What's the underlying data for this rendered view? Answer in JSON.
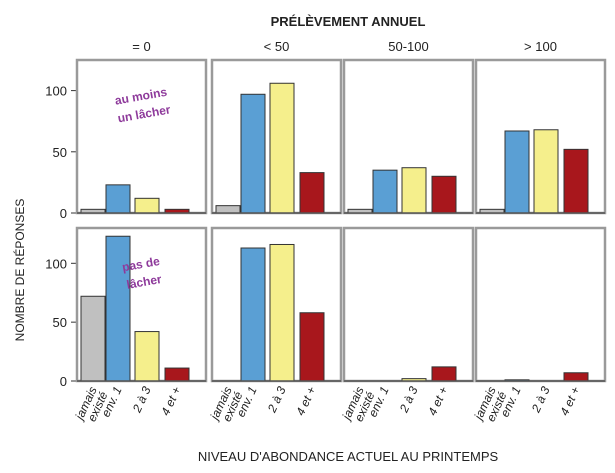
{
  "chart_data": {
    "type": "bar",
    "title": "PRÉLÈVEMENT ANNUEL",
    "xlabel": "NIVEAU D'ABONDANCE ACTUEL AU PRINTEMPS",
    "ylabel": "NOMBRE DE RÉPONSES",
    "columns": [
      "= 0",
      "< 50",
      "50-100",
      "> 100"
    ],
    "rows": [
      {
        "annotation": [
          "au moins",
          "un lâcher"
        ],
        "ylim": [
          0,
          125
        ],
        "yticks": [
          0,
          50,
          100
        ]
      },
      {
        "annotation": [
          "pas de",
          "lâcher"
        ],
        "ylim": [
          0,
          130
        ],
        "yticks": [
          0,
          50,
          100
        ]
      }
    ],
    "categories": [
      [
        "jamais",
        "existé"
      ],
      [
        "env. 1"
      ],
      [
        "2 à 3"
      ],
      [
        "4 et +"
      ]
    ],
    "colors": [
      "#c0c0c0",
      "#5a9fd4",
      "#f5ef8c",
      "#a8171c"
    ],
    "values": [
      [
        [
          3,
          23,
          12,
          3
        ],
        [
          6,
          97,
          106,
          33
        ],
        [
          3,
          35,
          37,
          30
        ],
        [
          3,
          67,
          68,
          52
        ]
      ],
      [
        [
          72,
          123,
          42,
          11
        ],
        [
          0,
          113,
          116,
          58
        ],
        [
          0,
          0,
          2,
          12
        ],
        [
          0,
          1,
          0,
          7
        ]
      ]
    ],
    "grid": false
  }
}
